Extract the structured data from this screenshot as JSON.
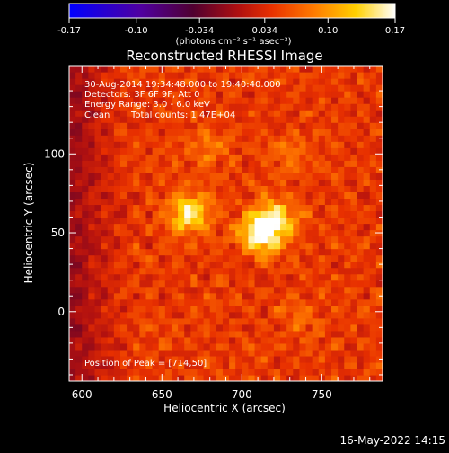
{
  "chart_data": {
    "type": "heatmap",
    "title": "Reconstructed RHESSI Image",
    "xlabel": "Heliocentric X (arcsec)",
    "ylabel": "Heliocentric Y (arcsec)",
    "xlim": [
      592,
      788
    ],
    "ylim": [
      -44,
      156
    ],
    "x_ticks": [
      600,
      650,
      700,
      750
    ],
    "y_ticks": [
      0,
      50,
      100
    ],
    "colorbar": {
      "min": -0.17,
      "max": 0.17,
      "ticks": [
        "-0.17",
        "-0.10",
        "-0.034",
        "0.034",
        "0.10",
        "0.17"
      ],
      "unit_label": "(photons cm⁻² s⁻¹ asec⁻²)",
      "colormap": "blue-purple-red-yellow-white"
    },
    "annotations": {
      "time_range": "30-Aug-2014 19:34:48.000 to 19:40:40.000",
      "detectors": "Detectors: 3F 6F 9F, Att 0",
      "energy_range": "Energy Range: 3.0 - 6.0 keV",
      "clean": "Clean",
      "total_counts": "Total counts: 1.47E+04",
      "peak": "Position of Peak = [714,50]"
    },
    "sources": [
      {
        "x": 667,
        "y": 63,
        "peak": 0.15
      },
      {
        "x": 712,
        "y": 50,
        "peak": 0.17
      },
      {
        "x": 722,
        "y": 60,
        "peak": 0.12
      },
      {
        "x": 680,
        "y": 105,
        "peak": 0.08
      },
      {
        "x": 730,
        "y": 100,
        "peak": 0.07
      },
      {
        "x": 735,
        "y": -3,
        "peak": 0.07
      }
    ]
  },
  "footer": {
    "timestamp": "16-May-2022 14:15"
  }
}
